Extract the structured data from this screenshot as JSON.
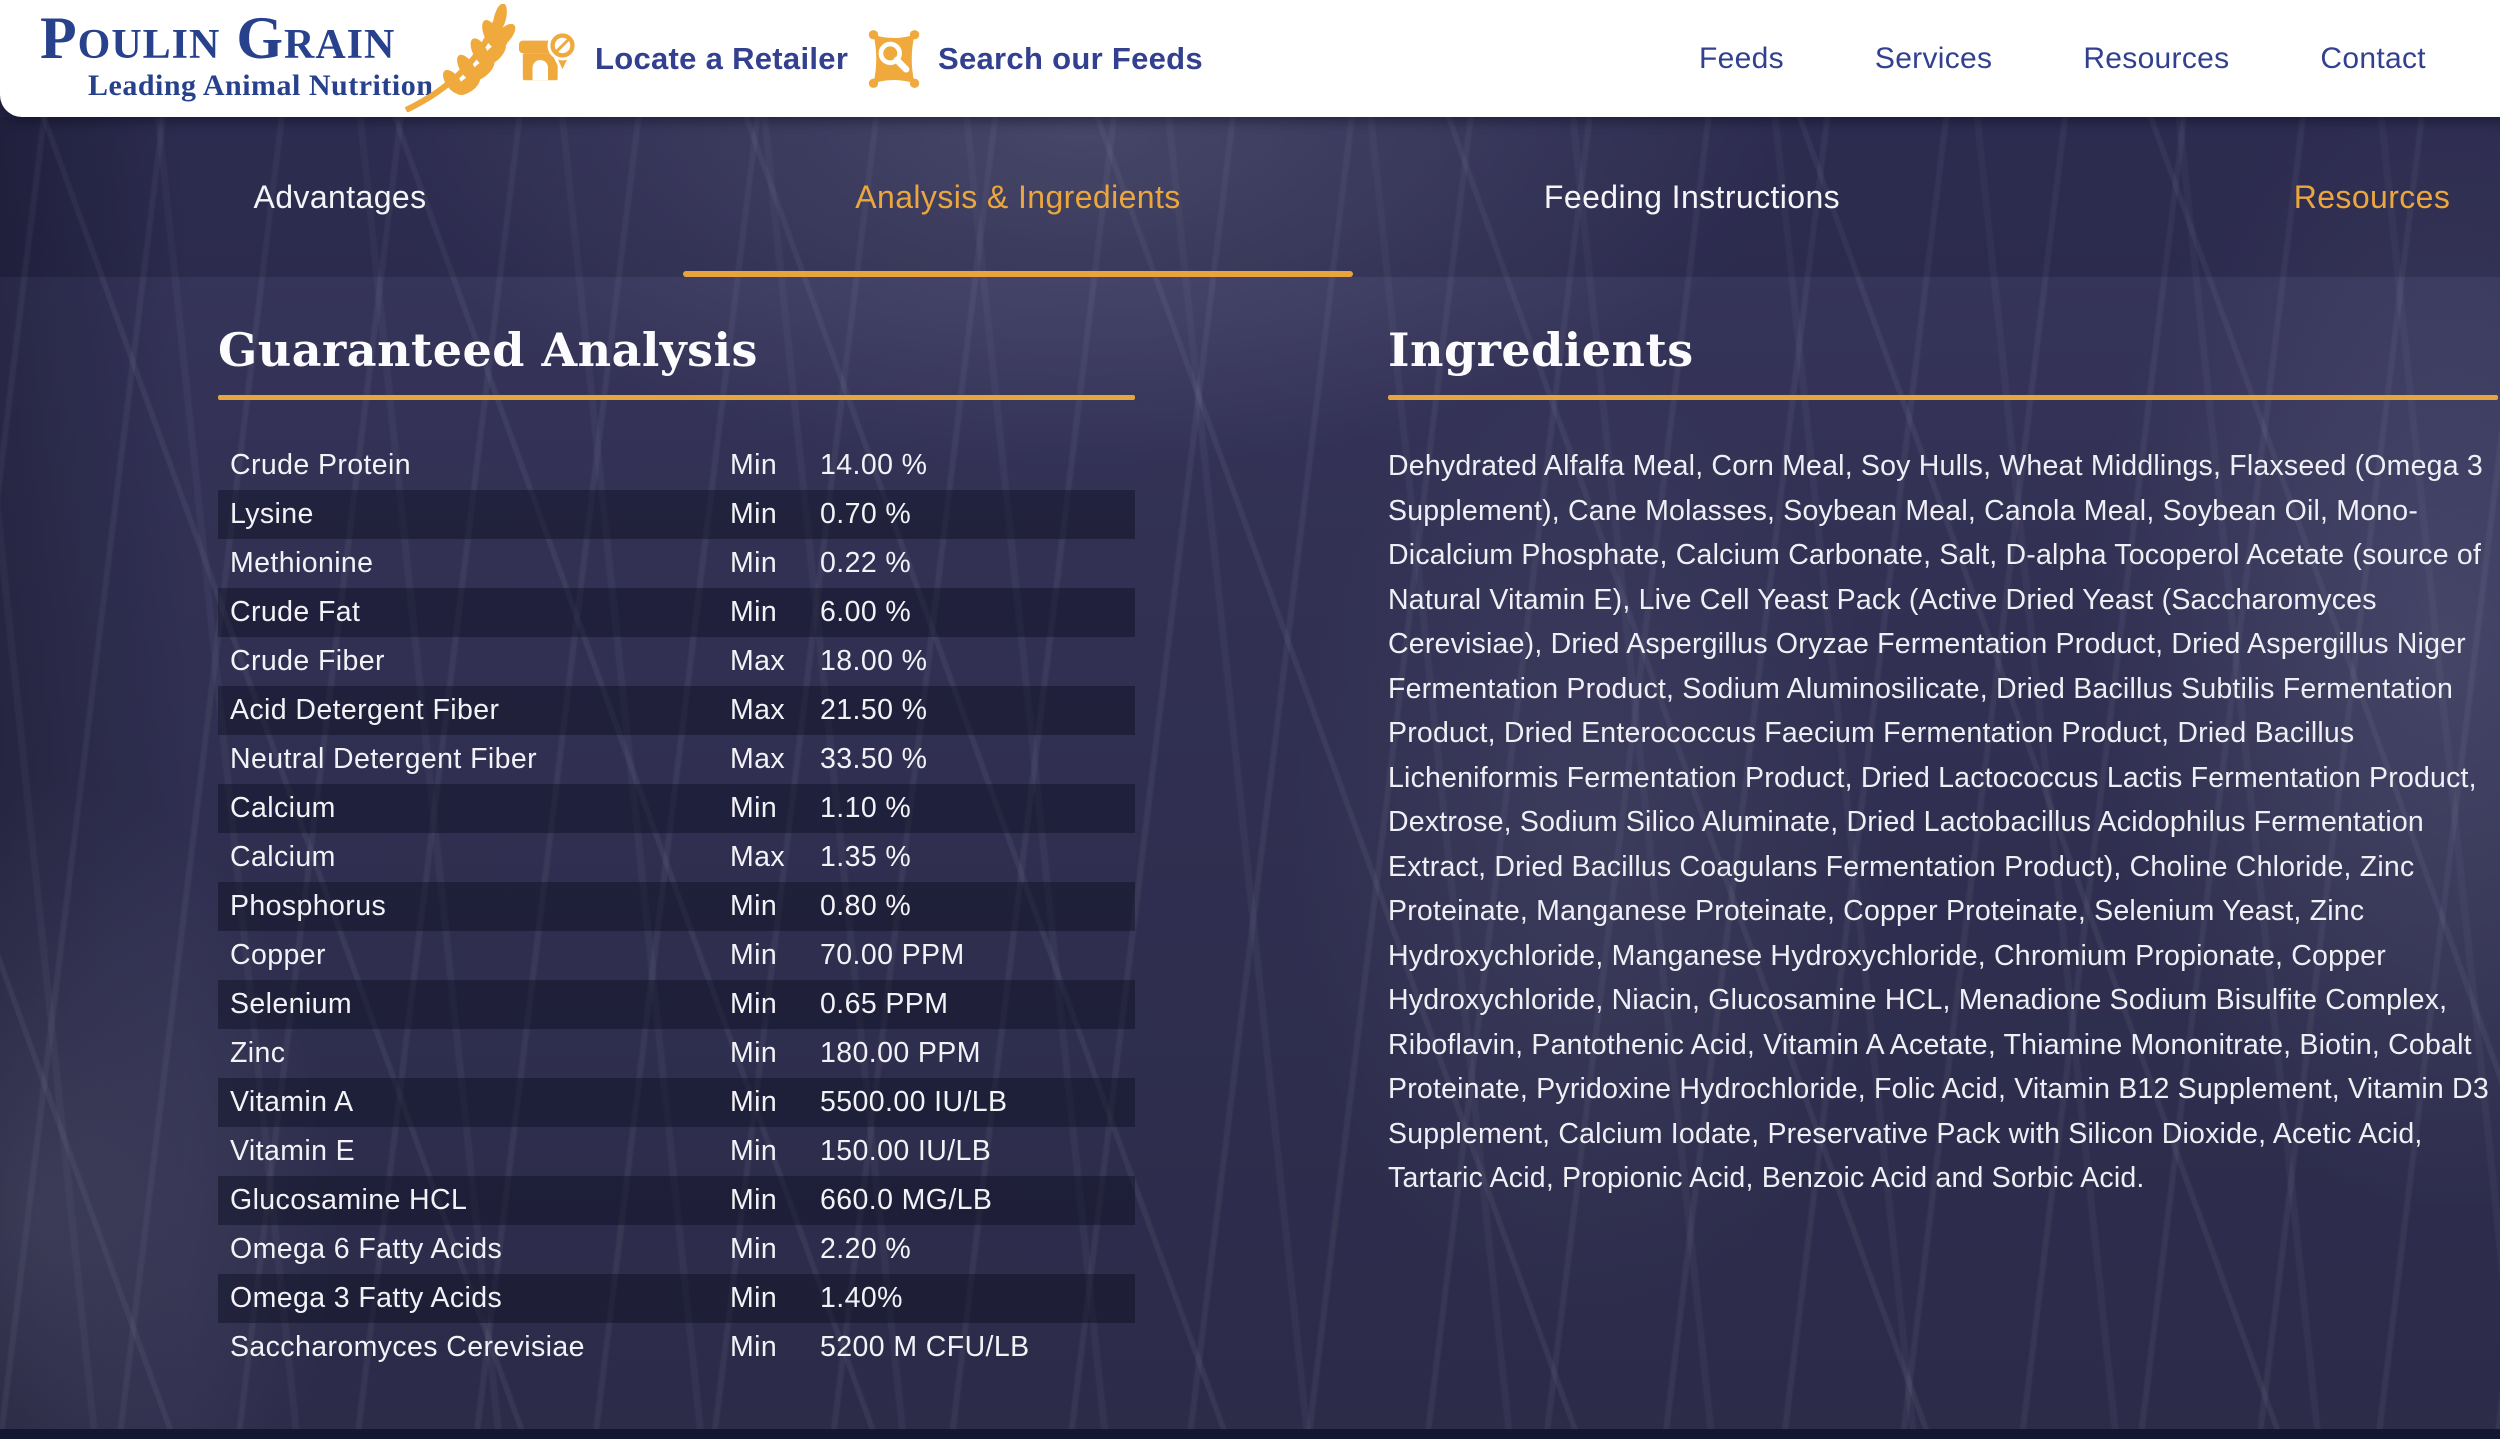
{
  "brand": {
    "wordmark": "Poulin Grain",
    "registered": "®",
    "tagline": "Leading Animal Nutrition"
  },
  "header": {
    "quick_links": [
      {
        "label": "Locate a Retailer",
        "icon": "store-pin-icon"
      },
      {
        "label": "Search our Feeds",
        "icon": "feed-bag-search-icon"
      }
    ],
    "nav": [
      {
        "label": "Feeds"
      },
      {
        "label": "Services"
      },
      {
        "label": "Resources"
      },
      {
        "label": "Contact"
      }
    ]
  },
  "tabs": {
    "items": [
      {
        "label": "Advantages",
        "state": "default"
      },
      {
        "label": "Analysis & Ingredients",
        "state": "active"
      },
      {
        "label": "Feeding Instructions",
        "state": "default"
      },
      {
        "label": "Resources",
        "state": "accent"
      }
    ]
  },
  "analysis": {
    "heading": "Guaranteed Analysis",
    "rows": [
      {
        "nutrient": "Crude Protein",
        "basis": "Min",
        "value": "14.00 %"
      },
      {
        "nutrient": "Lysine",
        "basis": "Min",
        "value": "0.70 %"
      },
      {
        "nutrient": "Methionine",
        "basis": "Min",
        "value": "0.22 %"
      },
      {
        "nutrient": "Crude Fat",
        "basis": "Min",
        "value": "6.00 %"
      },
      {
        "nutrient": "Crude Fiber",
        "basis": "Max",
        "value": "18.00 %"
      },
      {
        "nutrient": "Acid Detergent Fiber",
        "basis": "Max",
        "value": "21.50 %"
      },
      {
        "nutrient": "Neutral Detergent Fiber",
        "basis": "Max",
        "value": "33.50 %"
      },
      {
        "nutrient": "Calcium",
        "basis": "Min",
        "value": "1.10 %"
      },
      {
        "nutrient": "Calcium",
        "basis": "Max",
        "value": "1.35 %"
      },
      {
        "nutrient": "Phosphorus",
        "basis": "Min",
        "value": "0.80 %"
      },
      {
        "nutrient": "Copper",
        "basis": "Min",
        "value": "70.00 PPM"
      },
      {
        "nutrient": "Selenium",
        "basis": "Min",
        "value": "0.65 PPM"
      },
      {
        "nutrient": "Zinc",
        "basis": "Min",
        "value": "180.00 PPM"
      },
      {
        "nutrient": "Vitamin A",
        "basis": "Min",
        "value": "5500.00 IU/LB"
      },
      {
        "nutrient": "Vitamin E",
        "basis": "Min",
        "value": "150.00 IU/LB"
      },
      {
        "nutrient": "Glucosamine HCL",
        "basis": "Min",
        "value": "660.0 MG/LB"
      },
      {
        "nutrient": "Omega 6 Fatty Acids",
        "basis": "Min",
        "value": "2.20 %"
      },
      {
        "nutrient": "Omega 3 Fatty Acids",
        "basis": "Min",
        "value": "1.40%"
      },
      {
        "nutrient": "Saccharomyces Cerevisiae",
        "basis": "Min",
        "value": "5200 M CFU/LB"
      }
    ]
  },
  "ingredients": {
    "heading": "Ingredients",
    "text": "Dehydrated Alfalfa Meal, Corn Meal, Soy Hulls, Wheat Middlings, Flaxseed (Omega 3 Supplement), Cane Molasses, Soybean Meal, Canola Meal, Soybean Oil, Mono-Dicalcium Phosphate, Calcium Carbonate, Salt, D-alpha Tocoperol Acetate (source of Natural Vitamin E), Live Cell Yeast Pack (Active Dried Yeast (Saccharomyces Cerevisiae), Dried Aspergillus Oryzae Fermentation Product, Dried Aspergillus Niger Fermentation Product, Sodium Aluminosilicate, Dried Bacillus Subtilis Fermentation Product, Dried Enterococcus Faecium Fermentation Product, Dried Bacillus Licheniformis Fermentation Product, Dried Lactococcus Lactis Fermentation Product, Dextrose, Sodium Silico Aluminate, Dried Lactobacillus Acidophilus Fermentation Extract, Dried Bacillus Coagulans Fermentation Product), Choline Chloride, Zinc Proteinate, Manganese Proteinate, Copper Proteinate, Selenium Yeast, Zinc Hydroxychloride, Manganese Hydroxychloride, Chromium Propionate, Copper Hydroxychloride, Niacin, Glucosamine HCL, Menadione Sodium Bisulfite Complex, Riboflavin, Pantothenic Acid, Vitamin A Acetate, Thiamine Mononitrate, Biotin, Cobalt Proteinate, Pyridoxine Hydrochloride, Folic Acid, Vitamin B12 Supplement, Vitamin D3 Supplement, Calcium Iodate, Preservative Pack with Silicon Dioxide, Acetic Acid, Tartaric Acid, Propionic Acid, Benzoic Acid and Sorbic Acid."
  },
  "colors": {
    "accent_gold": "#E8A33D",
    "brand_blue": "#32408F",
    "logo_blue": "#27418D",
    "background_navy": "#2B2A4A",
    "text_light": "#F2F2F7",
    "row_stripe": "rgba(9,11,28,0.42)"
  }
}
